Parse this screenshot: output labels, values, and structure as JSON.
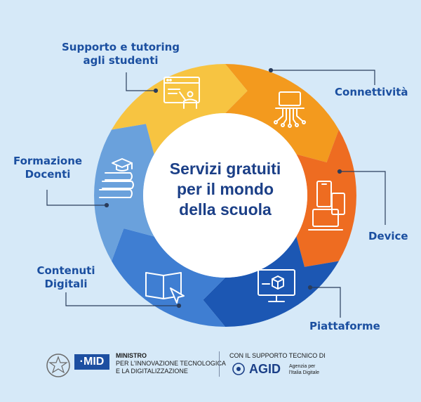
{
  "diagram": {
    "center_title": "Servizi gratuiti\nper il mondo\ndella scuola",
    "segments": [
      {
        "id": "supporto",
        "label": "Supporto e tutoring\nagli studenti",
        "color": "#f7c441",
        "icon": "teacher-board-icon"
      },
      {
        "id": "connettivita",
        "label": "Connettività",
        "color": "#f39a1e",
        "icon": "network-laptop-icon"
      },
      {
        "id": "device",
        "label": "Device",
        "color": "#ee6c21",
        "icon": "devices-icon"
      },
      {
        "id": "piattaforme",
        "label": "Piattaforme",
        "color": "#1c57b3",
        "icon": "monitor-cube-icon"
      },
      {
        "id": "contenuti",
        "label": "Contenuti\nDigitali",
        "color": "#3f7ed2",
        "icon": "open-book-cursor-icon"
      },
      {
        "id": "formazione",
        "label": "Formazione\nDocenti",
        "color": "#6aa1dc",
        "icon": "books-graduation-icon"
      }
    ]
  },
  "footer": {
    "mid_logo": "·MID",
    "ministry_title": "MINISTRO",
    "ministry_line1": "PER L'INNOVAZIONE TECNOLOGICA",
    "ministry_line2": "E LA DIGITALIZZAZIONE",
    "support_text": "CON IL SUPPORTO TECNICO DI",
    "agid_name": "AGID",
    "agid_sub1": "Agenzia per",
    "agid_sub2": "l'Italia Digitale",
    "emblem_icon": "italian-emblem-icon",
    "agid_icon": "agid-shield-icon"
  }
}
